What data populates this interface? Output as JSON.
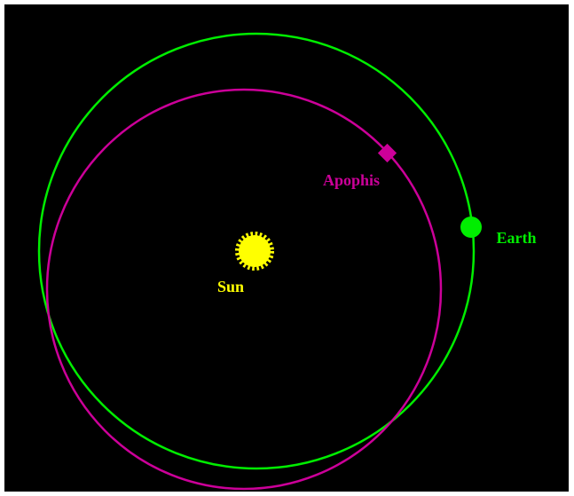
{
  "bodies": {
    "sun": {
      "label": "Sun"
    },
    "apophis": {
      "label": "Apophis"
    },
    "earth": {
      "label": "Earth"
    }
  }
}
